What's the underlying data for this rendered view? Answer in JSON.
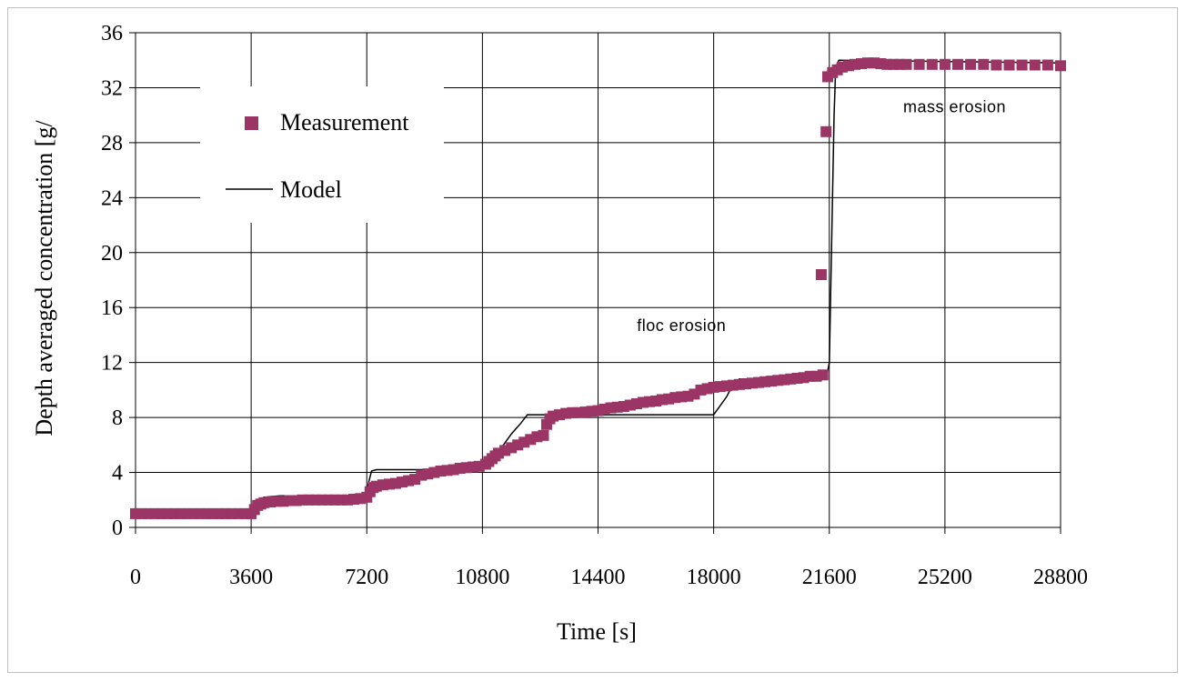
{
  "chart_data": {
    "type": "scatter",
    "title": "",
    "xlabel": "Time [s]",
    "ylabel": "Depth averaged concentration [g/",
    "xlim": [
      0,
      28800
    ],
    "ylim": [
      0,
      36
    ],
    "xticks": [
      "0",
      "3600",
      "7200",
      "10800",
      "14400",
      "18000",
      "21600",
      "25200",
      "28800"
    ],
    "yticks": [
      "0",
      "4",
      "8",
      "12",
      "16",
      "20",
      "24",
      "28",
      "32",
      "36"
    ],
    "grid": true,
    "legend": {
      "position": "top-left",
      "entries": [
        "Measurement",
        "Model"
      ]
    },
    "annotations": [
      {
        "text": "floc erosion",
        "x": 17000,
        "y": 14.3
      },
      {
        "text": "mass erosion",
        "x": 25500,
        "y": 30.2
      }
    ],
    "colors": {
      "measurement": "#9b3565",
      "model": "#000000",
      "grid": "#000000"
    },
    "series": [
      {
        "name": "Measurement",
        "points": [
          [
            0,
            1.0
          ],
          [
            200,
            1.0
          ],
          [
            400,
            1.0
          ],
          [
            600,
            1.0
          ],
          [
            800,
            1.0
          ],
          [
            1000,
            1.0
          ],
          [
            1200,
            1.0
          ],
          [
            1400,
            1.0
          ],
          [
            1600,
            1.0
          ],
          [
            1800,
            1.0
          ],
          [
            2000,
            1.0
          ],
          [
            2200,
            1.0
          ],
          [
            2400,
            1.0
          ],
          [
            2600,
            1.0
          ],
          [
            2800,
            1.0
          ],
          [
            3000,
            1.0
          ],
          [
            3200,
            1.0
          ],
          [
            3400,
            1.0
          ],
          [
            3600,
            1.0
          ],
          [
            3700,
            1.3
          ],
          [
            3800,
            1.6
          ],
          [
            3900,
            1.7
          ],
          [
            4000,
            1.8
          ],
          [
            4200,
            1.85
          ],
          [
            4400,
            1.9
          ],
          [
            4600,
            1.9
          ],
          [
            4800,
            1.95
          ],
          [
            5000,
            1.95
          ],
          [
            5200,
            2.0
          ],
          [
            5400,
            2.0
          ],
          [
            5600,
            2.0
          ],
          [
            5800,
            2.0
          ],
          [
            6000,
            2.0
          ],
          [
            6200,
            2.0
          ],
          [
            6400,
            2.0
          ],
          [
            6600,
            2.0
          ],
          [
            6800,
            2.05
          ],
          [
            7000,
            2.1
          ],
          [
            7200,
            2.2
          ],
          [
            7300,
            2.6
          ],
          [
            7400,
            2.9
          ],
          [
            7500,
            3.0
          ],
          [
            7700,
            3.1
          ],
          [
            7900,
            3.15
          ],
          [
            8100,
            3.2
          ],
          [
            8300,
            3.3
          ],
          [
            8500,
            3.4
          ],
          [
            8700,
            3.5
          ],
          [
            8900,
            3.8
          ],
          [
            9100,
            3.9
          ],
          [
            9300,
            4.0
          ],
          [
            9500,
            4.1
          ],
          [
            9700,
            4.15
          ],
          [
            9900,
            4.2
          ],
          [
            10100,
            4.3
          ],
          [
            10300,
            4.35
          ],
          [
            10500,
            4.4
          ],
          [
            10700,
            4.45
          ],
          [
            10900,
            4.6
          ],
          [
            11000,
            4.8
          ],
          [
            11100,
            5.0
          ],
          [
            11200,
            5.2
          ],
          [
            11300,
            5.4
          ],
          [
            11500,
            5.6
          ],
          [
            11700,
            5.8
          ],
          [
            11900,
            6.0
          ],
          [
            12100,
            6.2
          ],
          [
            12300,
            6.4
          ],
          [
            12500,
            6.6
          ],
          [
            12700,
            6.7
          ],
          [
            12800,
            7.5
          ],
          [
            12900,
            7.9
          ],
          [
            13000,
            8.1
          ],
          [
            13200,
            8.2
          ],
          [
            13400,
            8.3
          ],
          [
            13600,
            8.35
          ],
          [
            13800,
            8.35
          ],
          [
            14000,
            8.4
          ],
          [
            14200,
            8.45
          ],
          [
            14400,
            8.5
          ],
          [
            14600,
            8.6
          ],
          [
            14800,
            8.7
          ],
          [
            15000,
            8.75
          ],
          [
            15200,
            8.8
          ],
          [
            15400,
            8.9
          ],
          [
            15600,
            9.0
          ],
          [
            15800,
            9.1
          ],
          [
            16000,
            9.15
          ],
          [
            16200,
            9.2
          ],
          [
            16400,
            9.3
          ],
          [
            16600,
            9.35
          ],
          [
            16800,
            9.45
          ],
          [
            17000,
            9.5
          ],
          [
            17200,
            9.55
          ],
          [
            17400,
            9.7
          ],
          [
            17600,
            10.0
          ],
          [
            17800,
            10.1
          ],
          [
            18000,
            10.2
          ],
          [
            18200,
            10.25
          ],
          [
            18400,
            10.3
          ],
          [
            18600,
            10.35
          ],
          [
            18800,
            10.4
          ],
          [
            19000,
            10.45
          ],
          [
            19200,
            10.5
          ],
          [
            19400,
            10.55
          ],
          [
            19600,
            10.6
          ],
          [
            19800,
            10.65
          ],
          [
            20000,
            10.7
          ],
          [
            20200,
            10.75
          ],
          [
            20400,
            10.8
          ],
          [
            20600,
            10.85
          ],
          [
            20800,
            10.9
          ],
          [
            21000,
            11.0
          ],
          [
            21200,
            11.0
          ],
          [
            21400,
            11.1
          ],
          [
            21350,
            18.4
          ],
          [
            21500,
            28.8
          ],
          [
            21550,
            32.8
          ],
          [
            21700,
            33.1
          ],
          [
            21850,
            33.3
          ],
          [
            22000,
            33.5
          ],
          [
            22200,
            33.6
          ],
          [
            22400,
            33.7
          ],
          [
            22600,
            33.75
          ],
          [
            22800,
            33.8
          ],
          [
            23000,
            33.8
          ],
          [
            23200,
            33.75
          ],
          [
            23400,
            33.7
          ],
          [
            23600,
            33.7
          ],
          [
            23800,
            33.7
          ],
          [
            24000,
            33.7
          ],
          [
            24400,
            33.7
          ],
          [
            24800,
            33.7
          ],
          [
            25200,
            33.7
          ],
          [
            25600,
            33.7
          ],
          [
            26000,
            33.7
          ],
          [
            26400,
            33.7
          ],
          [
            26800,
            33.65
          ],
          [
            27200,
            33.65
          ],
          [
            27600,
            33.65
          ],
          [
            28000,
            33.65
          ],
          [
            28400,
            33.65
          ],
          [
            28800,
            33.6
          ]
        ]
      },
      {
        "name": "Model",
        "points": [
          [
            0,
            1.0
          ],
          [
            3550,
            1.0
          ],
          [
            3700,
            1.8
          ],
          [
            4000,
            2.2
          ],
          [
            4500,
            2.3
          ],
          [
            7150,
            2.3
          ],
          [
            7350,
            4.1
          ],
          [
            7500,
            4.2
          ],
          [
            10700,
            4.2
          ],
          [
            11000,
            4.5
          ],
          [
            11300,
            5.5
          ],
          [
            11700,
            6.8
          ],
          [
            12000,
            7.6
          ],
          [
            12200,
            8.2
          ],
          [
            18000,
            8.2
          ],
          [
            18400,
            9.5
          ],
          [
            18600,
            10.4
          ],
          [
            18800,
            10.8
          ],
          [
            21500,
            10.8
          ],
          [
            21600,
            12.0
          ],
          [
            21750,
            30.0
          ],
          [
            21800,
            33.5
          ],
          [
            21900,
            34.0
          ],
          [
            28800,
            33.8
          ]
        ]
      }
    ]
  }
}
